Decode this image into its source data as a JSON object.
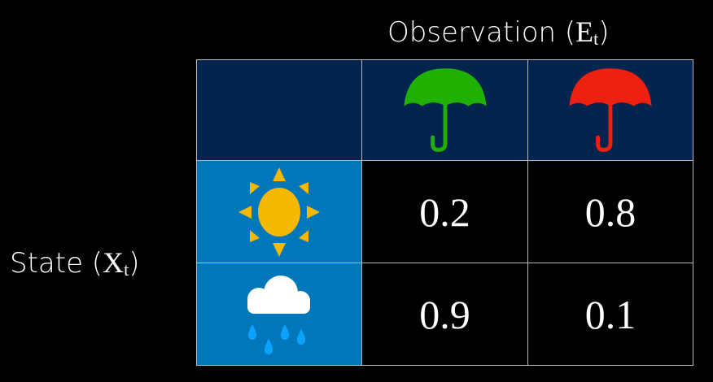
{
  "observation_label": {
    "prefix": "Observation (",
    "var": "E",
    "sub": "t",
    "suffix": ")"
  },
  "state_label": {
    "prefix": "State (",
    "var": "X",
    "sub": "t",
    "suffix": ")"
  },
  "columns": [
    {
      "icon": "umbrella-icon",
      "color": "#1fb000"
    },
    {
      "icon": "umbrella-icon",
      "color": "#ee2010"
    }
  ],
  "rows": [
    {
      "icon": "sun-icon",
      "color": "#f7b900",
      "values": [
        "0.2",
        "0.8"
      ]
    },
    {
      "icon": "rain-cloud-icon",
      "color": "#ffffff",
      "drop_color": "#0aa2ff",
      "values": [
        "0.9",
        "0.1"
      ]
    }
  ],
  "colors": {
    "header_bg": "#02244f",
    "state_bg": "#0077ba",
    "background": "#000000"
  }
}
